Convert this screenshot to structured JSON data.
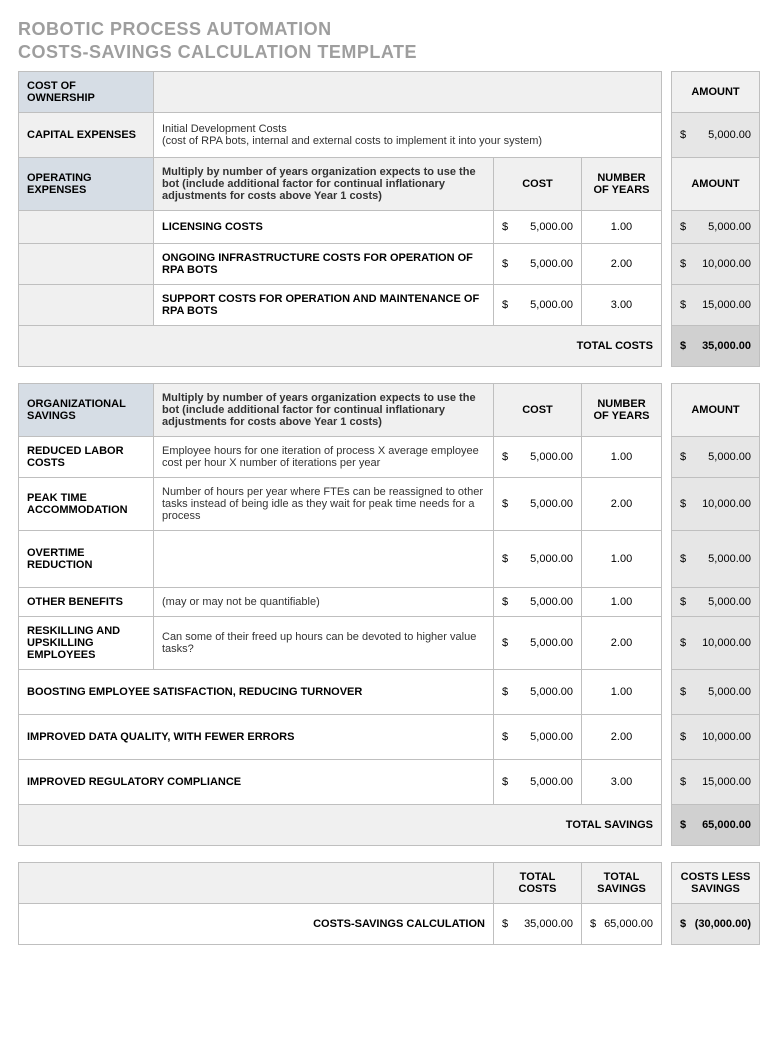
{
  "title_line1": "ROBOTIC PROCESS AUTOMATION",
  "title_line2": "COSTS-SAVINGS CALCULATION TEMPLATE",
  "headers": {
    "cost_of_ownership": "COST OF OWNERSHIP",
    "amount": "AMOUNT",
    "capital_expenses": "CAPITAL EXPENSES",
    "operating_expenses": "OPERATING EXPENSES",
    "cost": "COST",
    "years": "NUMBER OF YEARS",
    "org_savings": "ORGANIZATIONAL SAVINGS",
    "total_costs": "TOTAL COSTS",
    "total_savings": "TOTAL SAVINGS",
    "costs_less": "COSTS LESS SAVINGS",
    "calc_label": "COSTS-SAVINGS CALCULATION"
  },
  "capital": {
    "desc": "Initial Development Costs\n(cost of RPA bots, internal and external costs to implement it into your system)",
    "amount": "5,000.00"
  },
  "op_desc": "Multiply by number of years organization expects to use the bot (include additional factor for continual inflationary adjustments for costs above Year 1 costs)",
  "op_rows": [
    {
      "label": "LICENSING COSTS",
      "cost": "5,000.00",
      "years": "1.00",
      "amount": "5,000.00"
    },
    {
      "label": "ONGOING INFRASTRUCTURE COSTS FOR OPERATION OF RPA BOTS",
      "cost": "5,000.00",
      "years": "2.00",
      "amount": "10,000.00"
    },
    {
      "label": "SUPPORT COSTS FOR OPERATION AND MAINTENANCE OF RPA BOTS",
      "cost": "5,000.00",
      "years": "3.00",
      "amount": "15,000.00"
    }
  ],
  "total_costs": "35,000.00",
  "sav_rows": [
    {
      "label": "REDUCED LABOR COSTS",
      "desc": "Employee hours for one iteration of process X average employee cost per hour X number of iterations per year",
      "cost": "5,000.00",
      "years": "1.00",
      "amount": "5,000.00"
    },
    {
      "label": "PEAK TIME ACCOMMODATION",
      "desc": "Number of hours per year where FTEs can be reassigned to other tasks instead of being idle as they wait for peak time needs for a process",
      "cost": "5,000.00",
      "years": "2.00",
      "amount": "10,000.00"
    },
    {
      "label": "OVERTIME REDUCTION",
      "desc": "",
      "cost": "5,000.00",
      "years": "1.00",
      "amount": "5,000.00"
    },
    {
      "label": "OTHER BENEFITS",
      "desc": "(may or may not be quantifiable)",
      "cost": "5,000.00",
      "years": "1.00",
      "amount": "5,000.00"
    },
    {
      "label": "RESKILLING AND UPSKILLING EMPLOYEES",
      "desc": "Can some of their freed up hours can be devoted to higher value tasks?",
      "cost": "5,000.00",
      "years": "2.00",
      "amount": "10,000.00"
    },
    {
      "label": "BOOSTING EMPLOYEE SATISFACTION, REDUCING TURNOVER",
      "desc": "",
      "span": true,
      "cost": "5,000.00",
      "years": "1.00",
      "amount": "5,000.00"
    },
    {
      "label": "IMPROVED DATA QUALITY, WITH FEWER ERRORS",
      "desc": "",
      "span": true,
      "cost": "5,000.00",
      "years": "2.00",
      "amount": "10,000.00"
    },
    {
      "label": "IMPROVED REGULATORY COMPLIANCE",
      "desc": "",
      "span": true,
      "cost": "5,000.00",
      "years": "3.00",
      "amount": "15,000.00"
    }
  ],
  "total_savings": "65,000.00",
  "summary": {
    "total_costs": "35,000.00",
    "total_savings": "65,000.00",
    "costs_less": "(30,000.00)"
  },
  "colors": {
    "title_gray": "#9e9e9e",
    "border": "#bfbfbf",
    "header_gray": "#f0f0f0",
    "header_blue": "#d6dde5",
    "amount_bg": "#e6e6e6"
  }
}
